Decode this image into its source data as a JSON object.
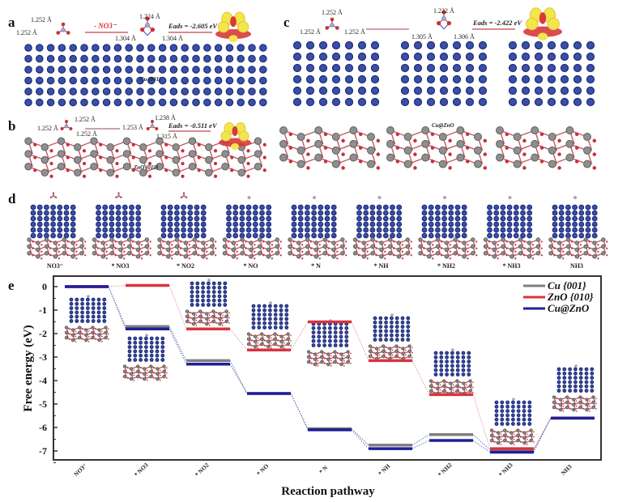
{
  "panels": {
    "a": {
      "label": "a",
      "bond_labels": [
        "1.252 Å",
        "1.252 Å",
        "1.224 Å",
        "1.304 Å",
        "1.304 Å"
      ],
      "arrow_label": "- NO3⁻",
      "eads_label": "Eads = -2.605 eV",
      "surface_label": "Cu {001}"
    },
    "b": {
      "label": "b",
      "bond_labels": [
        "1.252 Å",
        "1.252 Å",
        "1.252 Å",
        "1.253 Å",
        "1.238 Å",
        "1.315 Å"
      ],
      "eads_label": "Eads = -0.511 eV",
      "surface_label": "ZnO {010}"
    },
    "c": {
      "label": "c",
      "bond_labels": [
        "1.252 Å",
        "1.252 Å",
        "1.252 Å",
        "1.222 Å",
        "1.305 Å",
        "1.306 Å"
      ],
      "eads_label": "Eads = -2.422 eV",
      "surface_label": "Cu@ZnO"
    },
    "d": {
      "label": "d",
      "structures": [
        "NO3⁻",
        "* NO3",
        "* NO2",
        "* NO",
        "* N",
        "* NH",
        "* NH2",
        "* NH3",
        "NH3"
      ]
    },
    "e": {
      "label": "e"
    }
  },
  "colors": {
    "cu": "#7f7f7f",
    "zno": "#d9333f",
    "cu_zno": "#1f1f9a",
    "connector_cu_zno": "#5a6ab0",
    "connector_zno": "#e08a8f"
  },
  "chart_data": {
    "type": "line",
    "subtype": "free-energy-step-diagram",
    "xlabel": "Reaction pathway",
    "ylabel": "Free energy (eV)",
    "ylim": [
      -7.5,
      0.35
    ],
    "yticks": [
      0,
      -1,
      -2,
      -3,
      -4,
      -5,
      -6,
      -7
    ],
    "ytick_labels": [
      "0",
      "-1",
      "-2",
      "-3",
      "-4",
      "-5",
      "-6",
      "-7"
    ],
    "categories": [
      "NO3⁻",
      "* NO3",
      "* NO2",
      "* NO",
      "* N",
      "* NH",
      "* NH2",
      "* NH3",
      "NH3"
    ],
    "legend": {
      "position": "top-right",
      "entries": [
        "Cu {001}",
        "ZnO {010}",
        "Cu@ZnO"
      ]
    },
    "grid": false,
    "series": [
      {
        "name": "Cu {001}",
        "color": "#7f7f7f",
        "values": [
          0,
          -1.7,
          -3.15,
          -4.55,
          -6.05,
          -6.75,
          -6.3,
          -6.95,
          -5.6
        ]
      },
      {
        "name": "ZnO {010}",
        "color": "#d9333f",
        "values": [
          0,
          0.05,
          -1.8,
          -2.7,
          -1.5,
          -3.15,
          -4.6,
          -6.9,
          -5.6
        ]
      },
      {
        "name": "Cu@ZnO",
        "color": "#1f1f9a",
        "values": [
          0,
          -1.8,
          -3.3,
          -4.55,
          -6.1,
          -6.9,
          -6.55,
          -7.05,
          -5.6
        ]
      }
    ]
  }
}
